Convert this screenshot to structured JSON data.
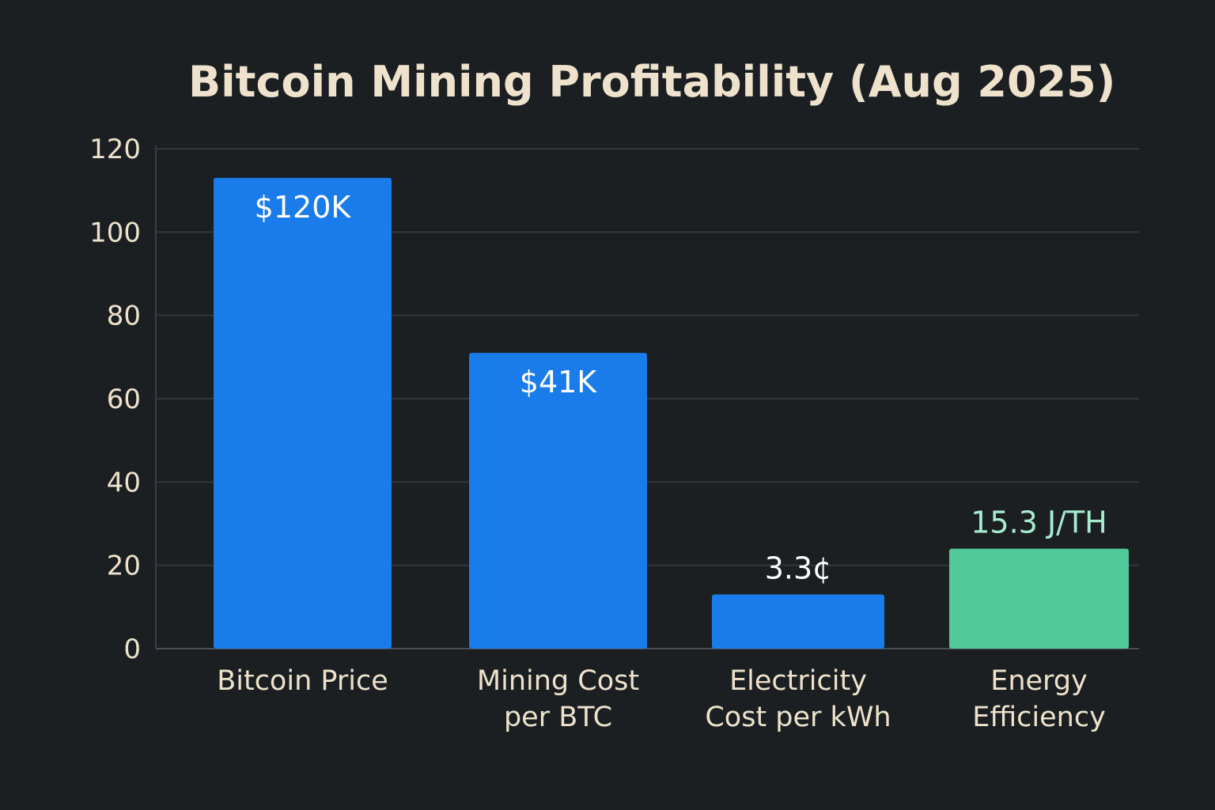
{
  "chart_data": {
    "type": "bar",
    "title": "Bitcoin Mining Profitability (Aug 2025)",
    "xlabel": "",
    "ylabel": "",
    "ylim": [
      0,
      120
    ],
    "yticks": [
      0,
      20,
      40,
      60,
      80,
      100,
      120
    ],
    "grid": true,
    "categories": [
      "Bitcoin Price",
      "Mining Cost\nper BTC",
      "Electricity\nCost per kWh",
      "Energy\nEfficiency"
    ],
    "values": [
      113,
      71,
      13,
      24
    ],
    "data_labels": [
      "$120K",
      "$41K",
      "3.3¢",
      "15.3 J/TH"
    ],
    "bar_colors": [
      "#1a7bea",
      "#1a7bea",
      "#1a7bea",
      "#52c99a"
    ],
    "label_colors": [
      "#ffffff",
      "#ffffff",
      "#ffffff",
      "#a8ecd0"
    ],
    "background": "#1b1f22"
  }
}
